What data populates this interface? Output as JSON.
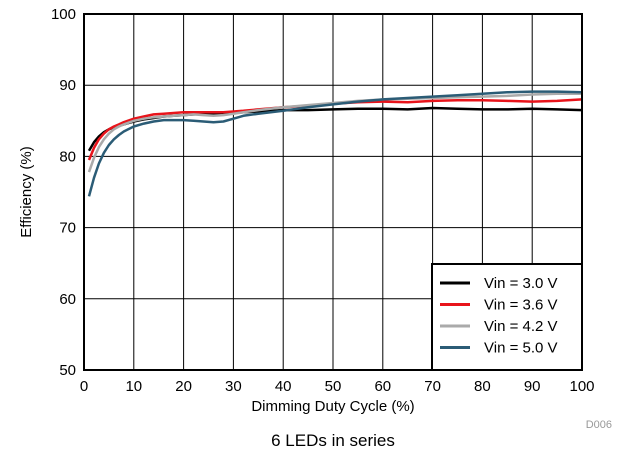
{
  "chart_data": {
    "type": "line",
    "caption": "6 LEDs in series",
    "figure_code": "D006",
    "xlabel": "Dimming Duty Cycle (%)",
    "ylabel": "Efficiency (%)",
    "xlim": [
      0,
      100
    ],
    "ylim": [
      50,
      100
    ],
    "x_ticks": [
      0,
      10,
      20,
      30,
      40,
      50,
      60,
      70,
      80,
      90,
      100
    ],
    "y_ticks": [
      50,
      60,
      70,
      80,
      90,
      100
    ],
    "grid": true,
    "legend_position": "bottom-right",
    "x": [
      1,
      2,
      3,
      4,
      5,
      6,
      7,
      8,
      10,
      12,
      14,
      16,
      18,
      20,
      22,
      24,
      26,
      28,
      30,
      32,
      35,
      40,
      45,
      50,
      55,
      60,
      65,
      70,
      75,
      80,
      85,
      90,
      95,
      100
    ],
    "series": [
      {
        "name": "Vin = 3.0 V",
        "color": "#000000",
        "values": [
          80.8,
          82.0,
          82.8,
          83.4,
          83.8,
          84.1,
          84.3,
          84.5,
          84.9,
          85.2,
          85.4,
          85.6,
          85.7,
          85.8,
          85.9,
          86.0,
          86.0,
          86.1,
          86.1,
          86.2,
          86.3,
          86.5,
          86.5,
          86.6,
          86.7,
          86.7,
          86.6,
          86.8,
          86.7,
          86.6,
          86.6,
          86.7,
          86.6,
          86.5
        ]
      },
      {
        "name": "Vin = 3.6 V",
        "color": "#e8141b",
        "values": [
          79.5,
          81.2,
          82.4,
          83.2,
          83.8,
          84.2,
          84.5,
          84.8,
          85.3,
          85.6,
          85.9,
          86.0,
          86.1,
          86.2,
          86.2,
          86.2,
          86.2,
          86.2,
          86.3,
          86.4,
          86.6,
          86.9,
          87.1,
          87.4,
          87.6,
          87.7,
          87.6,
          87.8,
          87.9,
          87.9,
          87.8,
          87.7,
          87.8,
          88.0
        ]
      },
      {
        "name": "Vin = 4.2 V",
        "color": "#aaaaaa",
        "values": [
          77.8,
          79.8,
          81.3,
          82.4,
          83.2,
          83.8,
          84.2,
          84.5,
          85.0,
          85.3,
          85.5,
          85.6,
          85.7,
          85.8,
          85.9,
          85.8,
          85.7,
          85.8,
          86.0,
          86.2,
          86.5,
          86.9,
          87.2,
          87.5,
          87.8,
          88.0,
          88.1,
          88.2,
          88.3,
          88.4,
          88.5,
          88.7,
          88.8,
          88.8
        ]
      },
      {
        "name": "Vin = 5.0 V",
        "color": "#2b5c76",
        "values": [
          74.4,
          77.0,
          79.0,
          80.5,
          81.6,
          82.4,
          83.0,
          83.5,
          84.2,
          84.6,
          84.9,
          85.1,
          85.1,
          85.1,
          85.0,
          84.9,
          84.8,
          84.9,
          85.3,
          85.7,
          86.0,
          86.4,
          86.9,
          87.3,
          87.7,
          88.0,
          88.2,
          88.4,
          88.6,
          88.8,
          89.0,
          89.1,
          89.1,
          89.0
        ]
      }
    ]
  }
}
